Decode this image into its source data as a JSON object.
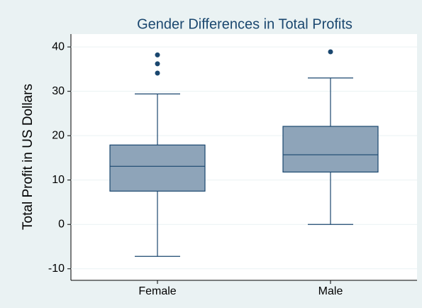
{
  "chart_data": {
    "type": "box",
    "title": "Gender Differences in Total Profits",
    "y_label": "Total Profit in US Dollars",
    "categories": [
      "Female",
      "Male"
    ],
    "boxes": [
      {
        "whisker_low": -7.2,
        "q1": 7.5,
        "median": 13.1,
        "q3": 17.9,
        "whisker_high": 29.4,
        "outliers": [
          38.2,
          36.2,
          34.1
        ]
      },
      {
        "whisker_low": 0,
        "q1": 11.8,
        "median": 15.7,
        "q3": 22.1,
        "whisker_high": 33,
        "outliers": [
          38.9
        ]
      }
    ],
    "color": "#8ea4b9",
    "line_color": "#1a476f",
    "ylim": [
      -12.6,
      42.9
    ],
    "yticks": [
      -10,
      0,
      10,
      20,
      30,
      40
    ],
    "grid": true
  }
}
